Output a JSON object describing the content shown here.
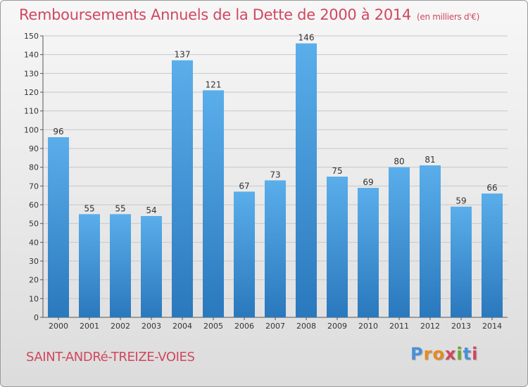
{
  "title": "Remboursements Annuels de la Dette de 2000 à 2014",
  "subtitle": "(en milliers d'€)",
  "place": "SAINT-ANDRé-TREIZE-VOIES",
  "brand": {
    "letters": [
      "P",
      "r",
      "o",
      "x",
      "i",
      "t",
      "i"
    ],
    "colors": [
      "#4a90d9",
      "#e58a1f",
      "#e58a1f",
      "#d0475f",
      "#6aaa2c",
      "#4a90d9",
      "#d0475f"
    ]
  },
  "colors": {
    "bar_top": "#5aaeea",
    "bar_bottom": "#2a78bd",
    "title": "#d0475f",
    "grid": "#c8c8c8"
  },
  "chart_data": {
    "type": "bar",
    "title": "Remboursements Annuels de la Dette de 2000 à 2014",
    "subtitle": "(en milliers d'€)",
    "xlabel": "",
    "ylabel": "",
    "categories": [
      "2000",
      "2001",
      "2002",
      "2003",
      "2004",
      "2005",
      "2006",
      "2007",
      "2008",
      "2009",
      "2010",
      "2011",
      "2012",
      "2013",
      "2014"
    ],
    "values": [
      96,
      55,
      55,
      54,
      137,
      121,
      67,
      73,
      146,
      75,
      69,
      80,
      81,
      59,
      66
    ],
    "ylim": [
      0,
      150
    ],
    "yticks": [
      0,
      10,
      20,
      30,
      40,
      50,
      60,
      70,
      80,
      90,
      100,
      110,
      120,
      130,
      140,
      150
    ],
    "grid": true,
    "legend": "none"
  }
}
